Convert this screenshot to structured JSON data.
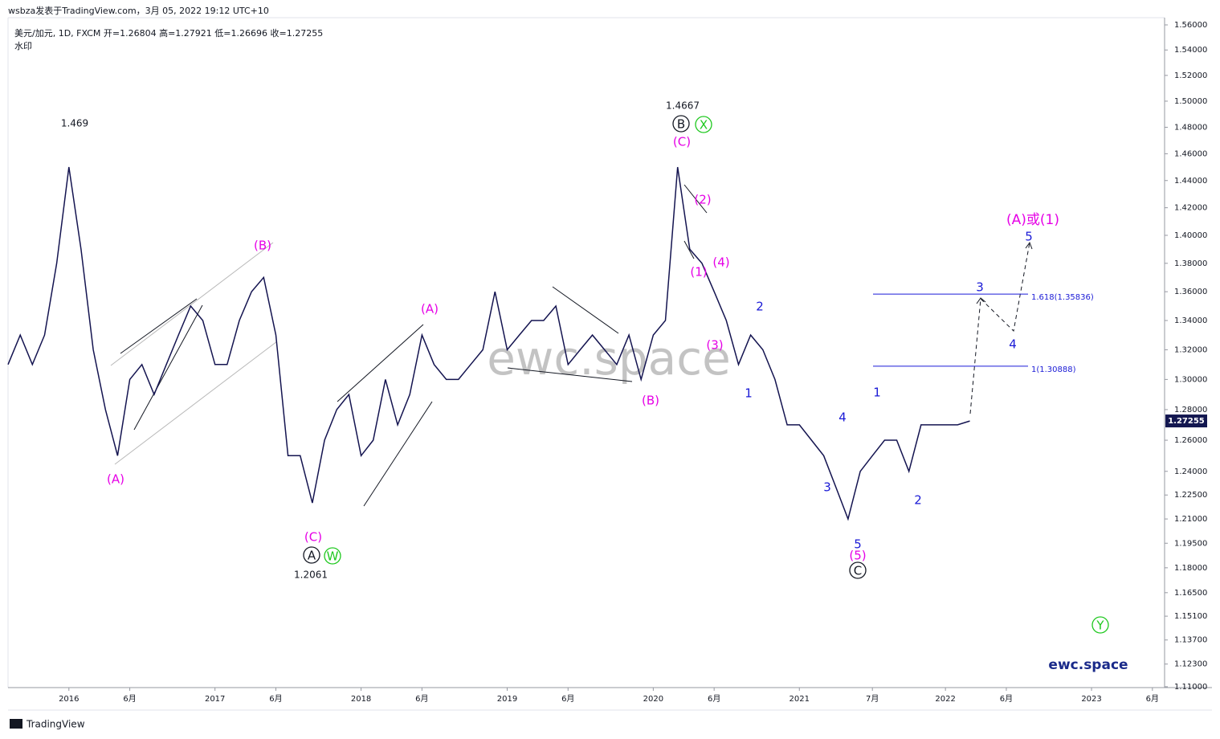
{
  "header": {
    "byline": "wsbza发表于TradingView.com，3月 05, 2022 19:12 UTC+10",
    "symbol_line": "美元/加元, 1D, FXCM 开=1.26804 高=1.27921 低=1.26696 收=1.27255",
    "watermark_label": "水印"
  },
  "chart_data": {
    "type": "line",
    "log_scale": true,
    "color": "#141450",
    "watermark": "ewc.space",
    "brand": "ewc.space",
    "footer": "TradingView",
    "xlim": [
      "2015-08",
      "2023-07"
    ],
    "xticks": [
      {
        "value": "2016-01",
        "label": "2016"
      },
      {
        "value": "2016-06",
        "label": "6月"
      },
      {
        "value": "2017-01",
        "label": "2017"
      },
      {
        "value": "2017-06",
        "label": "6月"
      },
      {
        "value": "2018-01",
        "label": "2018"
      },
      {
        "value": "2018-06",
        "label": "6月"
      },
      {
        "value": "2019-01",
        "label": "2019"
      },
      {
        "value": "2019-06",
        "label": "6月"
      },
      {
        "value": "2020-01",
        "label": "2020"
      },
      {
        "value": "2020-06",
        "label": "6月"
      },
      {
        "value": "2021-01",
        "label": "2021"
      },
      {
        "value": "2021-07",
        "label": "7月"
      },
      {
        "value": "2022-01",
        "label": "2022"
      },
      {
        "value": "2022-06",
        "label": "6月"
      },
      {
        "value": "2023-01",
        "label": "2023"
      },
      {
        "value": "2023-06",
        "label": "6月"
      }
    ],
    "ylim": [
      1.1095,
      1.5658
    ],
    "yticks": [
      {
        "value": 1.56,
        "label": "1.56000"
      },
      {
        "value": 1.54,
        "label": "1.54000"
      },
      {
        "value": 1.52,
        "label": "1.52000"
      },
      {
        "value": 1.5,
        "label": "1.50000"
      },
      {
        "value": 1.48,
        "label": "1.48000"
      },
      {
        "value": 1.46,
        "label": "1.46000"
      },
      {
        "value": 1.44,
        "label": "1.44000"
      },
      {
        "value": 1.42,
        "label": "1.42000"
      },
      {
        "value": 1.4,
        "label": "1.40000"
      },
      {
        "value": 1.38,
        "label": "1.38000"
      },
      {
        "value": 1.36,
        "label": "1.36000"
      },
      {
        "value": 1.34,
        "label": "1.34000"
      },
      {
        "value": 1.32,
        "label": "1.32000"
      },
      {
        "value": 1.3,
        "label": "1.30000"
      },
      {
        "value": 1.28,
        "label": "1.28000"
      },
      {
        "value": 1.26,
        "label": "1.26000"
      },
      {
        "value": 1.24,
        "label": "1.24000"
      },
      {
        "value": 1.225,
        "label": "1.22500"
      },
      {
        "value": 1.21,
        "label": "1.21000"
      },
      {
        "value": 1.195,
        "label": "1.19500"
      },
      {
        "value": 1.18,
        "label": "1.18000"
      },
      {
        "value": 1.165,
        "label": "1.16500"
      },
      {
        "value": 1.151,
        "label": "1.15100"
      },
      {
        "value": 1.137,
        "label": "1.13700"
      },
      {
        "value": 1.123,
        "label": "1.12300"
      },
      {
        "value": 1.11,
        "label": "1.11000"
      }
    ],
    "x": [
      "2015-08",
      "2015-09",
      "2015-10",
      "2015-11",
      "2015-12",
      "2016-01",
      "2016-02",
      "2016-03",
      "2016-04",
      "2016-05",
      "2016-06",
      "2016-07",
      "2016-08",
      "2016-09",
      "2016-10",
      "2016-11",
      "2016-12",
      "2017-01",
      "2017-02",
      "2017-03",
      "2017-04",
      "2017-05",
      "2017-06",
      "2017-07",
      "2017-08",
      "2017-09",
      "2017-10",
      "2017-11",
      "2017-12",
      "2018-01",
      "2018-02",
      "2018-03",
      "2018-04",
      "2018-05",
      "2018-06",
      "2018-07",
      "2018-08",
      "2018-09",
      "2018-10",
      "2018-11",
      "2018-12",
      "2019-01",
      "2019-02",
      "2019-03",
      "2019-04",
      "2019-05",
      "2019-06",
      "2019-07",
      "2019-08",
      "2019-09",
      "2019-10",
      "2019-11",
      "2019-12",
      "2020-01",
      "2020-02",
      "2020-03",
      "2020-04",
      "2020-05",
      "2020-06",
      "2020-07",
      "2020-08",
      "2020-09",
      "2020-10",
      "2020-11",
      "2020-12",
      "2021-01",
      "2021-02",
      "2021-03",
      "2021-04",
      "2021-05",
      "2021-06",
      "2021-07",
      "2021-08",
      "2021-09",
      "2021-10",
      "2021-11",
      "2021-12",
      "2022-01",
      "2022-02",
      "2022-03"
    ],
    "values": [
      1.31,
      1.33,
      1.31,
      1.33,
      1.38,
      1.45,
      1.39,
      1.32,
      1.28,
      1.25,
      1.3,
      1.31,
      1.29,
      1.31,
      1.33,
      1.35,
      1.34,
      1.31,
      1.31,
      1.34,
      1.36,
      1.37,
      1.33,
      1.25,
      1.25,
      1.22,
      1.26,
      1.28,
      1.29,
      1.25,
      1.26,
      1.3,
      1.27,
      1.29,
      1.33,
      1.31,
      1.3,
      1.3,
      1.31,
      1.32,
      1.36,
      1.32,
      1.33,
      1.34,
      1.34,
      1.35,
      1.31,
      1.32,
      1.33,
      1.32,
      1.31,
      1.33,
      1.3,
      1.33,
      1.34,
      1.45,
      1.39,
      1.38,
      1.36,
      1.34,
      1.31,
      1.33,
      1.32,
      1.3,
      1.27,
      1.27,
      1.26,
      1.25,
      1.23,
      1.21,
      1.24,
      1.25,
      1.26,
      1.26,
      1.24,
      1.27,
      1.27,
      1.27,
      1.27,
      1.27255
    ],
    "last_price": {
      "value": 1.27255,
      "label": "1.27255"
    },
    "levels": [
      {
        "value": 1.35836,
        "label": "1.618(1.35836)"
      },
      {
        "value": 1.30888,
        "label": "1(1.30888)"
      }
    ],
    "level_color": "#1a1ad6",
    "annotations": [
      {
        "text": "1.469",
        "color": "#131722",
        "circled": false
      },
      {
        "text": "(A)",
        "color": "#e600e6",
        "circled": false
      },
      {
        "text": "(B)",
        "color": "#e600e6",
        "circled": false
      },
      {
        "text": "(C)",
        "color": "#e600e6",
        "circled": false
      },
      {
        "text": "A",
        "color": "#131722",
        "circled": true
      },
      {
        "text": "W",
        "color": "#1ec81e",
        "circled": true
      },
      {
        "text": "1.2061",
        "color": "#131722",
        "circled": false
      },
      {
        "text": "(A)",
        "color": "#e600e6",
        "circled": false
      },
      {
        "text": "(B)",
        "color": "#e600e6",
        "circled": false
      },
      {
        "text": "1.4667",
        "color": "#131722",
        "circled": false
      },
      {
        "text": "B",
        "color": "#131722",
        "circled": true
      },
      {
        "text": "X",
        "color": "#1ec81e",
        "circled": true
      },
      {
        "text": "(C)",
        "color": "#e600e6",
        "circled": false
      },
      {
        "text": "(2)",
        "color": "#e600e6",
        "circled": false
      },
      {
        "text": "(1)",
        "color": "#e600e6",
        "circled": false
      },
      {
        "text": "(4)",
        "color": "#e600e6",
        "circled": false
      },
      {
        "text": "(3)",
        "color": "#e600e6",
        "circled": false
      },
      {
        "text": "1",
        "color": "#1a1ad6",
        "circled": false
      },
      {
        "text": "2",
        "color": "#1a1ad6",
        "circled": false
      },
      {
        "text": "3",
        "color": "#1a1ad6",
        "circled": false
      },
      {
        "text": "4",
        "color": "#1a1ad6",
        "circled": false
      },
      {
        "text": "5",
        "color": "#1a1ad6",
        "circled": false
      },
      {
        "text": "(5)",
        "color": "#e600e6",
        "circled": false
      },
      {
        "text": "C",
        "color": "#131722",
        "circled": true
      },
      {
        "text": "1",
        "color": "#1a1ad6",
        "circled": false
      },
      {
        "text": "2",
        "color": "#1a1ad6",
        "circled": false
      },
      {
        "text": "3",
        "color": "#1a1ad6",
        "circled": false
      },
      {
        "text": "4",
        "color": "#1a1ad6",
        "circled": false
      },
      {
        "text": "5",
        "color": "#1a1ad6",
        "circled": false
      },
      {
        "text": "(A)或(1)",
        "color": "#e600e6",
        "circled": false
      },
      {
        "text": "Y",
        "color": "#1ec81e",
        "circled": true
      }
    ]
  }
}
